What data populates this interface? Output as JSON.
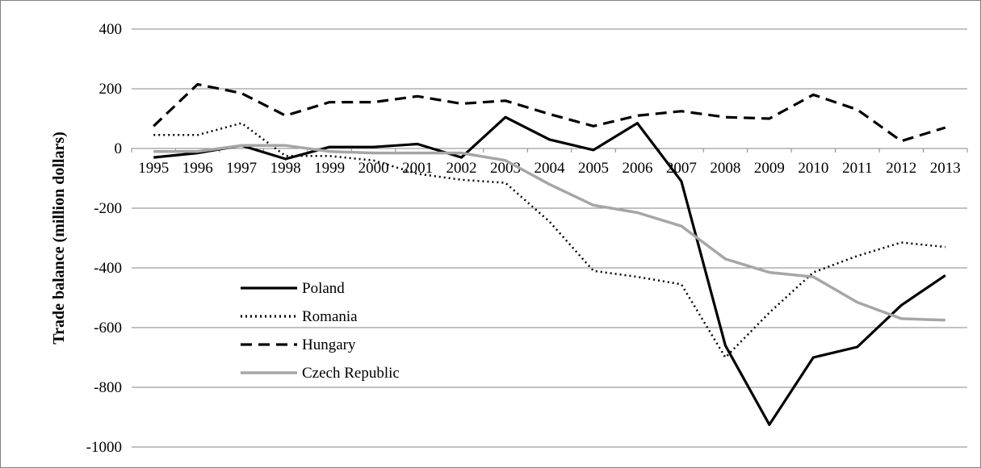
{
  "chart_data": {
    "type": "line",
    "title": "",
    "xlabel": "",
    "ylabel": "Trade balance (million dollars)",
    "ylim": [
      -1000,
      400
    ],
    "yticks": [
      400,
      200,
      0,
      -200,
      -400,
      -600,
      -800,
      -1000
    ],
    "grid": true,
    "legend_position": "left, lower middle",
    "categories": [
      "1995",
      "1996",
      "1997",
      "1998",
      "1999",
      "2000",
      "2001",
      "2002",
      "2003",
      "2004",
      "2005",
      "2006",
      "2007",
      "2008",
      "2009",
      "2010",
      "2011",
      "2012",
      "2013"
    ],
    "series": [
      {
        "name": "Poland",
        "style": "solid",
        "color": "#000000",
        "values": [
          -30,
          -15,
          10,
          -35,
          5,
          5,
          15,
          -30,
          105,
          30,
          -5,
          85,
          -110,
          -660,
          -925,
          -700,
          -665,
          -525,
          -425
        ]
      },
      {
        "name": "Romania",
        "style": "dotted",
        "color": "#000000",
        "values": [
          45,
          45,
          85,
          -25,
          -25,
          -40,
          -85,
          -105,
          -115,
          -245,
          -410,
          -430,
          -455,
          -700,
          -550,
          -415,
          -360,
          -315,
          -330
        ]
      },
      {
        "name": "Hungary",
        "style": "dashed",
        "color": "#000000",
        "values": [
          75,
          215,
          185,
          110,
          155,
          155,
          175,
          150,
          160,
          115,
          75,
          110,
          125,
          105,
          100,
          180,
          130,
          25,
          70
        ]
      },
      {
        "name": "Czech Republic",
        "style": "solid",
        "color": "#a6a6a6",
        "values": [
          -10,
          -10,
          10,
          10,
          -10,
          -15,
          -15,
          -15,
          -40,
          -120,
          -190,
          -215,
          -260,
          -370,
          -415,
          -430,
          -515,
          -570,
          -575
        ]
      }
    ]
  }
}
